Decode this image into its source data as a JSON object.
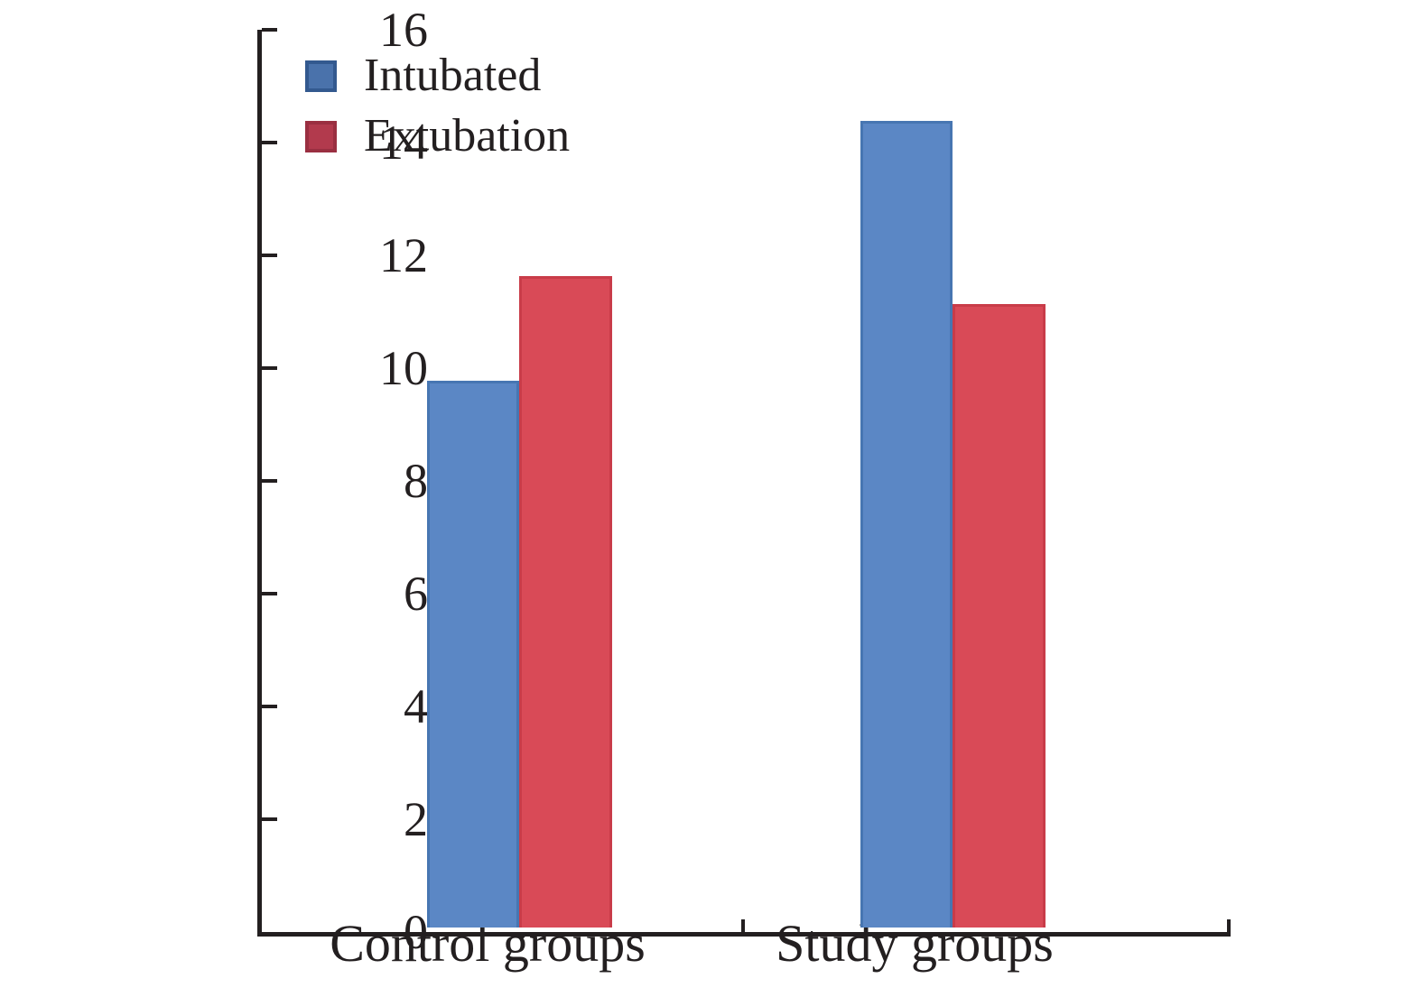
{
  "figure": {
    "background": "#ffffff",
    "text_color": "#231f20",
    "axis_color": "#231f20"
  },
  "legend": {
    "position": "upper-left",
    "items": [
      {
        "label": "Intubated",
        "swatch_fill": "#4a72ab",
        "swatch_border": "#33598f"
      },
      {
        "label": "Extubation",
        "swatch_fill": "#b23a4d",
        "swatch_border": "#9a2f41"
      }
    ]
  },
  "chart_data": {
    "type": "bar",
    "title": "",
    "xlabel": "",
    "ylabel": "",
    "categories": [
      "Control groups",
      "Study groups"
    ],
    "series": [
      {
        "name": "Intubated",
        "color": "#5b87c5",
        "edge_color": "#4776b2",
        "values": [
          9.7,
          14.3
        ]
      },
      {
        "name": "Extubation",
        "color": "#d94a57",
        "edge_color": "#c93c49",
        "values": [
          11.55,
          11.05
        ]
      }
    ],
    "ylim": [
      0,
      16
    ],
    "yticks": [
      0,
      2,
      4,
      6,
      8,
      10,
      12,
      14,
      16
    ],
    "grid": false,
    "tick_direction": "in",
    "legend_position": "upper-left"
  }
}
